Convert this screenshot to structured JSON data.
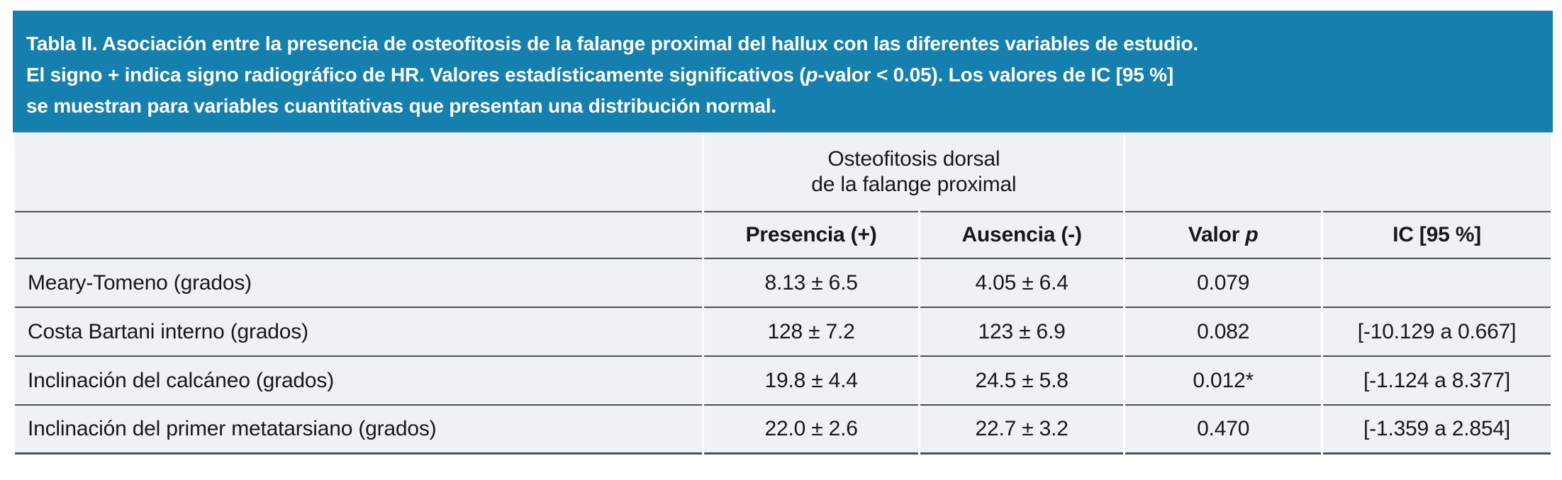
{
  "colors": {
    "caption_bg": "#157fad",
    "caption_text": "#ffffff",
    "cell_bg": "#eef1f6",
    "rule": "#4b5158",
    "body_text": "#15181c",
    "page_bg": "#ffffff"
  },
  "caption": {
    "lines": [
      [
        {
          "t": "Tabla II. Asociación entre la presencia de osteofitosis de la falange proximal del hallux con las diferentes variables de estudio."
        }
      ],
      [
        {
          "t": "El signo + indica signo radiográfico de HR. Valores estadísticamente significativos ("
        },
        {
          "t": "p",
          "i": true
        },
        {
          "t": "-valor < 0.05). Los valores de IC [95 %]"
        }
      ],
      [
        {
          "t": "se muestran para variables cuantitativas que presentan una distribución normal."
        }
      ]
    ]
  },
  "table": {
    "span_header_lines": [
      "Osteofitosis dorsal",
      "de la falange proximal"
    ],
    "columns": [
      [
        {
          "t": "Presencia (+)"
        }
      ],
      [
        {
          "t": "Ausencia (-)"
        }
      ],
      [
        {
          "t": "Valor "
        },
        {
          "t": "p",
          "i": true
        }
      ],
      [
        {
          "t": "IC [95 %]"
        }
      ]
    ],
    "rows": [
      {
        "label": "Meary-Tomeno (grados)",
        "presencia": "8.13 ± 6.5",
        "ausencia": "4.05 ± 6.4",
        "valor_p": "0.079",
        "ic": ""
      },
      {
        "label": "Costa Bartani interno (grados)",
        "presencia": "128 ± 7.2",
        "ausencia": "123 ± 6.9",
        "valor_p": "0.082",
        "ic": "[-10.129 a 0.667]"
      },
      {
        "label": "Inclinación del calcáneo (grados)",
        "presencia": "19.8 ± 4.4",
        "ausencia": "24.5 ± 5.8",
        "valor_p": "0.012*",
        "ic": "[-1.124 a 8.377]"
      },
      {
        "label": "Inclinación del primer metatarsiano (grados)",
        "presencia": "22.0 ± 2.6",
        "ausencia": "22.7 ± 3.2",
        "valor_p": "0.470",
        "ic": "[-1.359 a 2.854]"
      }
    ]
  }
}
